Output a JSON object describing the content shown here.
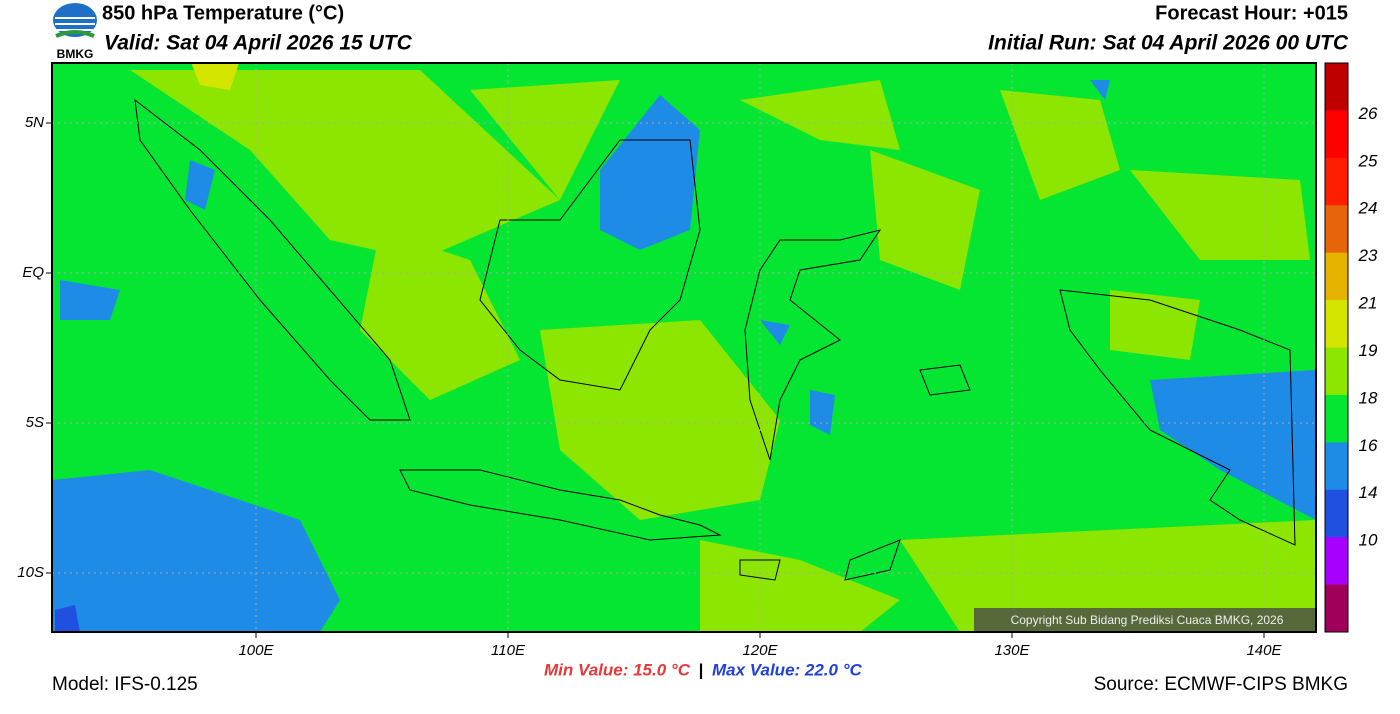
{
  "header": {
    "title": "850 hPa Temperature (°C)",
    "valid": "Valid: Sat 04 April 2026 15 UTC",
    "forecast_hour": "Forecast Hour: +015",
    "initial_run": "Initial Run: Sat 04 April 2026 00 UTC",
    "logo_text": "BMKG"
  },
  "map": {
    "lat_labels": [
      "5N",
      "EQ",
      "5S",
      "10S"
    ],
    "lon_labels": [
      "100E",
      "110E",
      "120E",
      "130E",
      "140E"
    ],
    "copyright": "Copyright Sub Bidang Prediksi Cuaca BMKG, 2026"
  },
  "colorbar": {
    "labels": [
      26,
      25,
      24,
      23,
      21,
      19,
      18,
      16,
      14,
      10
    ],
    "colors": [
      "#c00000",
      "#ff0000",
      "#ff1f00",
      "#e8640a",
      "#e6b400",
      "#d4e600",
      "#8ce600",
      "#05e632",
      "#1e8ce6",
      "#2050e0",
      "#a800ff",
      "#a0005a"
    ]
  },
  "footer": {
    "model": "Model: IFS-0.125",
    "min_value": "Min Value: 15.0 °C",
    "separator": "|",
    "max_value": "Max Value: 22.0 °C",
    "source": "Source: ECMWF-CIPS BMKG"
  }
}
